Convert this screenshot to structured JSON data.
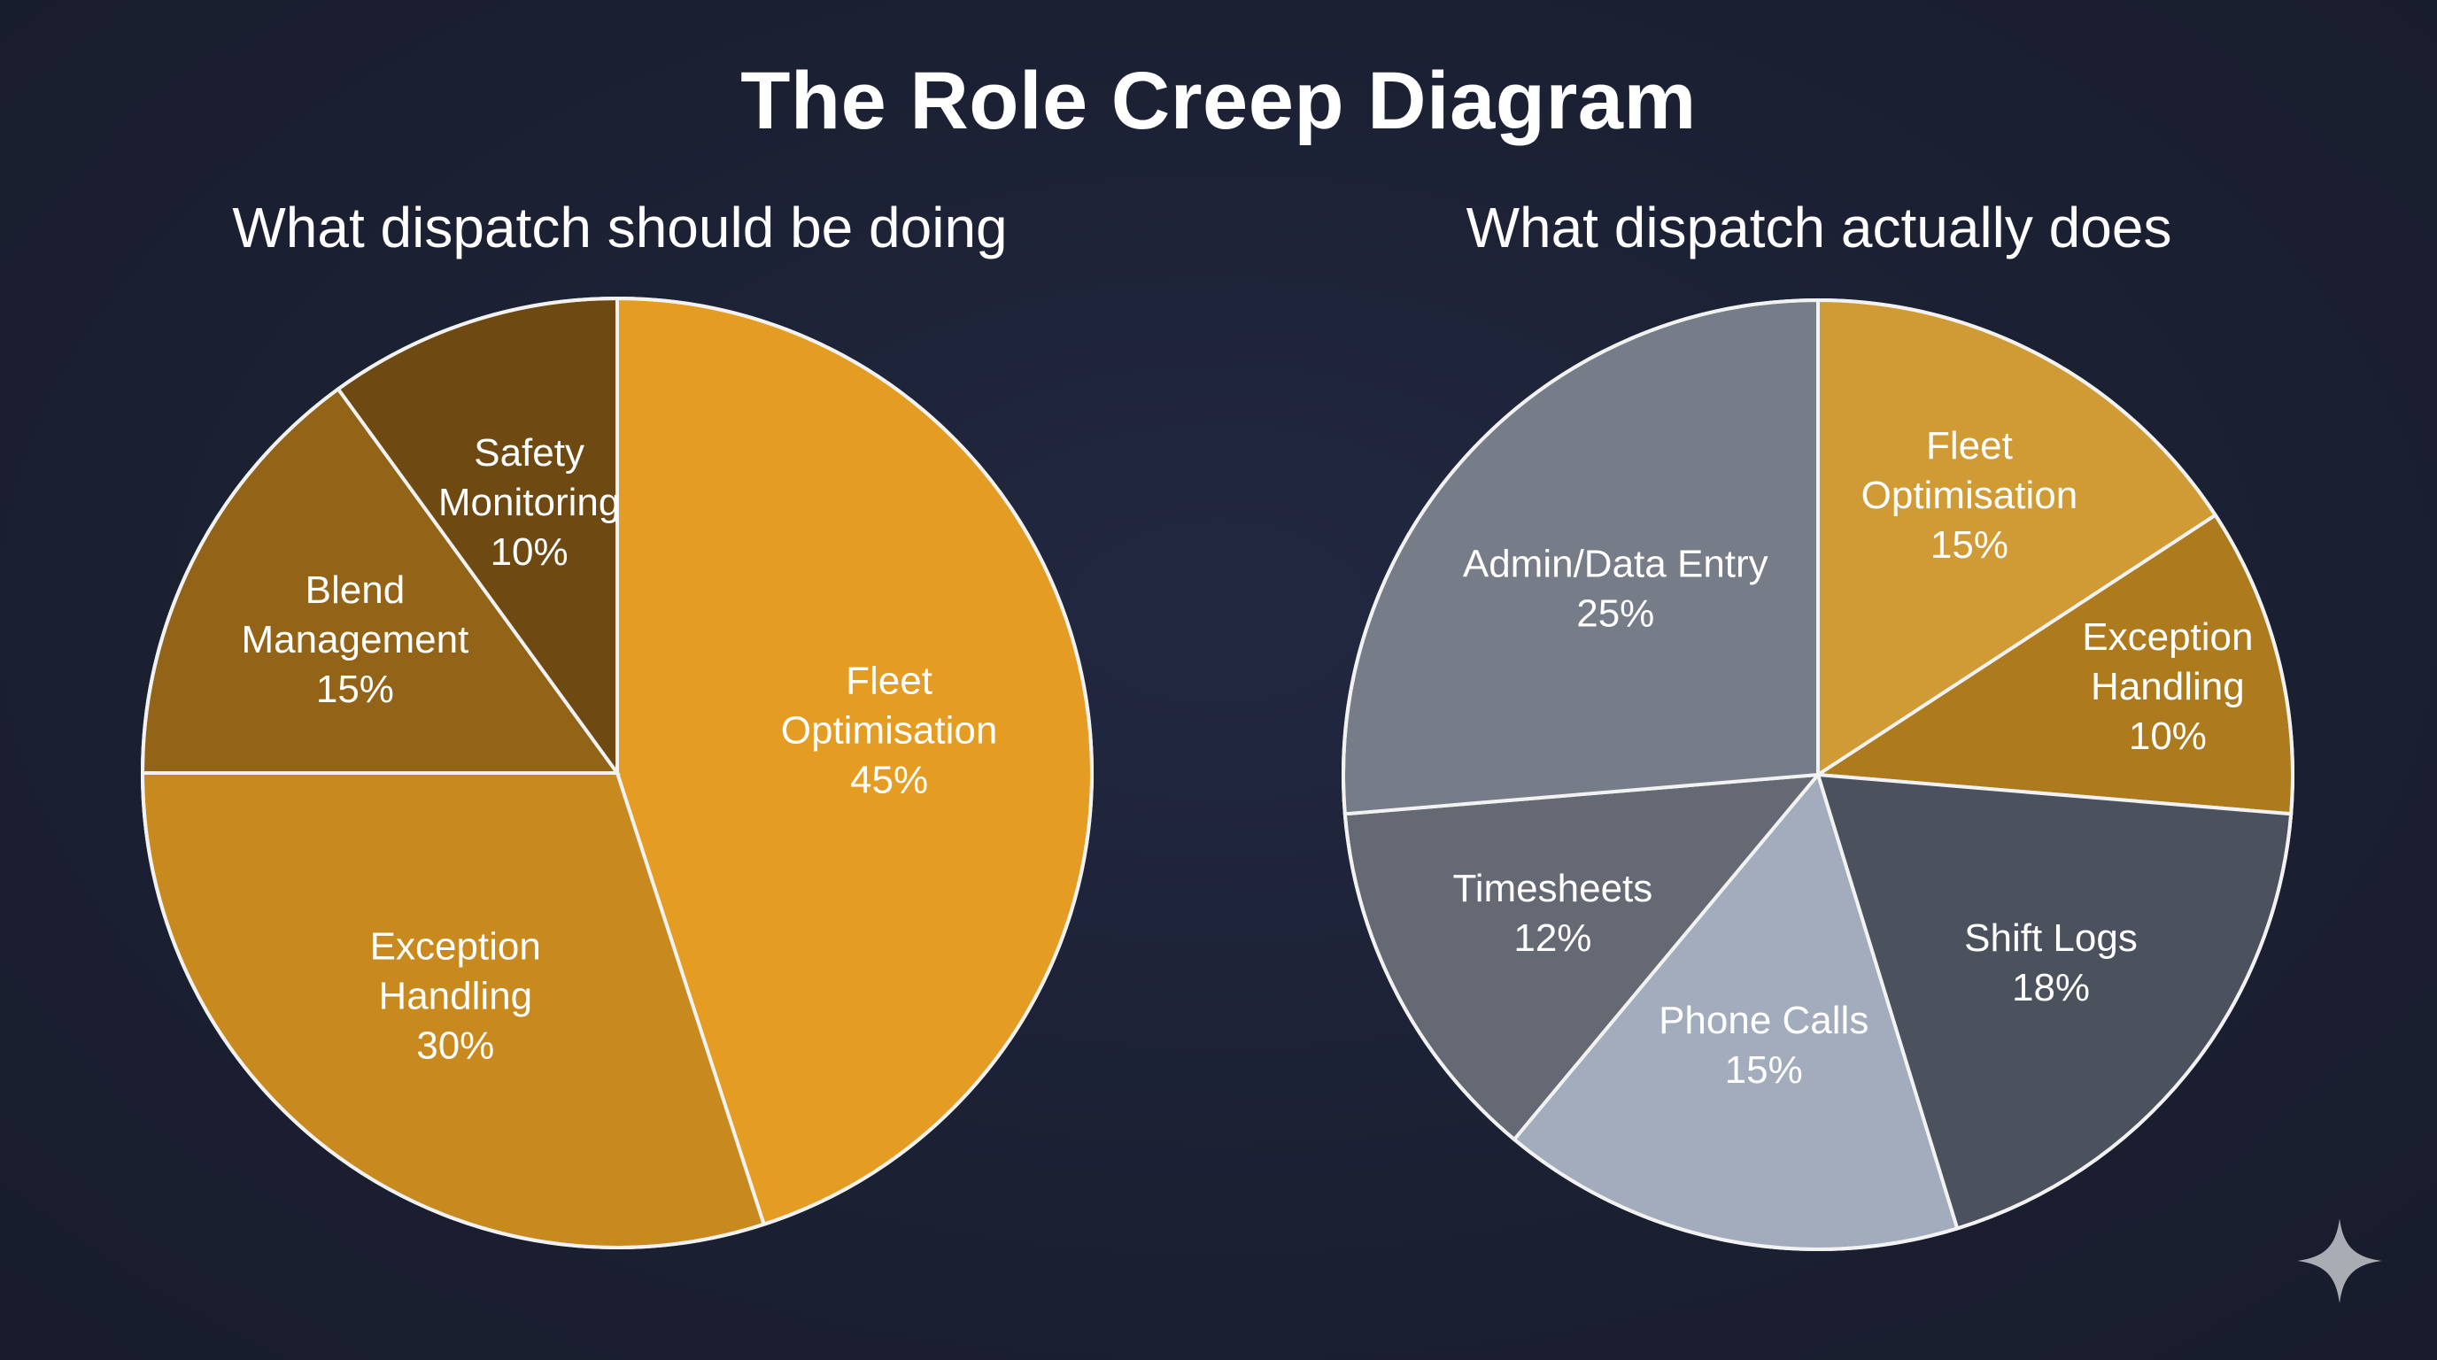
{
  "title": "The Role Creep Diagram",
  "chart_data": [
    {
      "type": "pie",
      "title": "What dispatch should be doing",
      "slices": [
        {
          "label": [
            "Fleet",
            "Optimisation"
          ],
          "value": 45,
          "display": "45%",
          "color": "#e49c23"
        },
        {
          "label": [
            "Exception",
            "Handling"
          ],
          "value": 30,
          "display": "30%",
          "color": "#c88a1e"
        },
        {
          "label": [
            "Blend",
            "Management"
          ],
          "value": 15,
          "display": "15%",
          "color": "#936418"
        },
        {
          "label": [
            "Safety",
            "Monitoring"
          ],
          "value": 10,
          "display": "10%",
          "color": "#6e4a12"
        }
      ]
    },
    {
      "type": "pie",
      "title": "What dispatch actually does",
      "slices": [
        {
          "label": [
            "Fleet",
            "Optimisation"
          ],
          "value": 15,
          "display": "15%",
          "color": "#d09a35"
        },
        {
          "label": [
            "Exception",
            "Handling"
          ],
          "value": 10,
          "display": "10%",
          "color": "#ad7b1d"
        },
        {
          "label": [
            "Shift Logs"
          ],
          "value": 18,
          "display": "18%",
          "color": "#4b525d"
        },
        {
          "label": [
            "Phone Calls"
          ],
          "value": 15,
          "display": "15%",
          "color": "#a3acbd"
        },
        {
          "label": [
            "Timesheets"
          ],
          "value": 12,
          "display": "12%",
          "color": "#646974"
        },
        {
          "label": [
            "Admin/Data Entry"
          ],
          "value": 25,
          "display": "25%",
          "color": "#767c88"
        }
      ]
    }
  ]
}
